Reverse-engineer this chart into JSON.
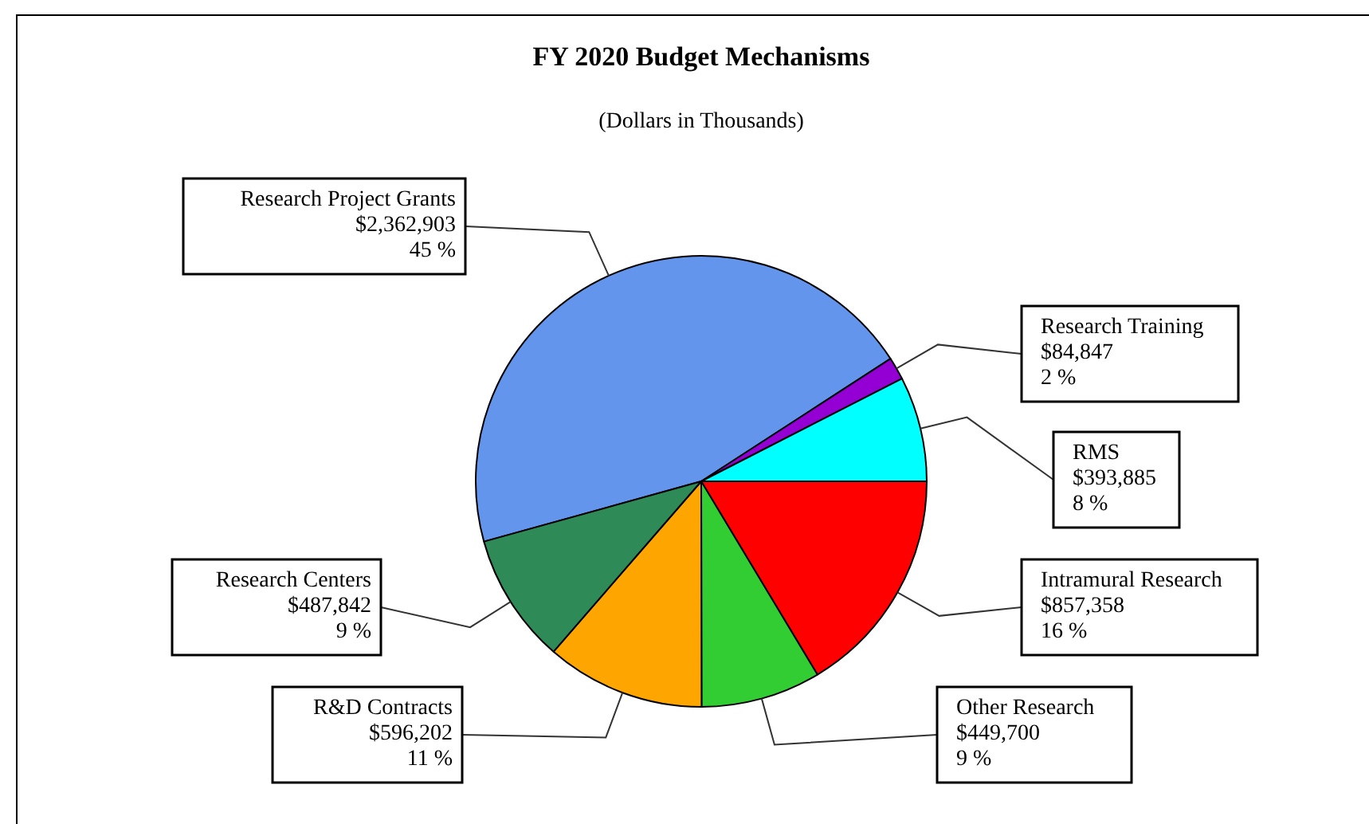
{
  "chart_data": {
    "type": "pie",
    "title": "FY 2020 Budget Mechanisms",
    "subtitle": "(Dollars in Thousands)",
    "categories": [
      "Research Project Grants",
      "Research Training",
      "RMS",
      "Intramural Research",
      "Other Research",
      "R&D Contracts",
      "Research Centers"
    ],
    "values": [
      2362903,
      84847,
      393885,
      857358,
      449700,
      596202,
      487842
    ],
    "colors": [
      "#6495ed",
      "#9400d3",
      "#00ffff",
      "#ff0000",
      "#32cd32",
      "#ffa500",
      "#2e8b57"
    ],
    "value_labels": [
      "$2,362,903\n45 %",
      "$84,847\n2 %",
      "$393,885\n8 %",
      "$857,358\n16 %",
      "$449,700\n9 %",
      "$596,202\n11 %",
      "$487,842\n9 %"
    ],
    "legend": false
  }
}
